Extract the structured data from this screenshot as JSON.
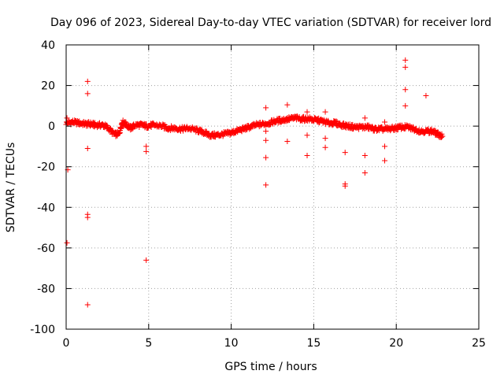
{
  "chart_data": {
    "type": "scatter",
    "title": "Day 096 of 2023, Sidereal Day-to-day VTEC variation (SDTVAR) for receiver lord",
    "xlabel": "GPS time / hours",
    "ylabel": "SDTVAR / TECUs",
    "xlim": [
      0,
      25
    ],
    "ylim": [
      -100,
      40
    ],
    "xticks": [
      0,
      5,
      10,
      15,
      20,
      25
    ],
    "yticks": [
      -100,
      -80,
      -60,
      -40,
      -20,
      0,
      20,
      40
    ],
    "grid": true,
    "marker": "+",
    "series": [
      {
        "name": "SDTVAR",
        "color": "#ff0000",
        "trend": [
          [
            0.0,
            1.5
          ],
          [
            0.4,
            2.0
          ],
          [
            0.8,
            1.5
          ],
          [
            1.2,
            1.0
          ],
          [
            1.5,
            1.0
          ],
          [
            1.8,
            0.5
          ],
          [
            2.2,
            0.5
          ],
          [
            2.5,
            -0.5
          ],
          [
            2.9,
            -4.0
          ],
          [
            3.2,
            -4.0
          ],
          [
            3.4,
            2.0
          ],
          [
            3.6,
            1.0
          ],
          [
            3.9,
            -1.0
          ],
          [
            4.2,
            0.5
          ],
          [
            4.6,
            0.5
          ],
          [
            4.9,
            0.0
          ],
          [
            5.3,
            0.5
          ],
          [
            5.8,
            0.0
          ],
          [
            6.2,
            -1.0
          ],
          [
            6.6,
            -1.0
          ],
          [
            7.0,
            -1.5
          ],
          [
            7.4,
            -1.0
          ],
          [
            7.9,
            -2.0
          ],
          [
            8.3,
            -3.0
          ],
          [
            8.7,
            -4.5
          ],
          [
            9.1,
            -4.5
          ],
          [
            9.5,
            -4.0
          ],
          [
            9.9,
            -3.5
          ],
          [
            10.3,
            -2.5
          ],
          [
            10.7,
            -1.5
          ],
          [
            11.1,
            -0.5
          ],
          [
            11.5,
            0.5
          ],
          [
            11.9,
            1.0
          ],
          [
            12.3,
            1.5
          ],
          [
            12.7,
            2.5
          ],
          [
            13.1,
            3.0
          ],
          [
            13.5,
            3.5
          ],
          [
            13.9,
            4.0
          ],
          [
            14.3,
            3.5
          ],
          [
            14.7,
            3.5
          ],
          [
            15.1,
            3.0
          ],
          [
            15.5,
            2.5
          ],
          [
            15.9,
            1.5
          ],
          [
            16.3,
            1.5
          ],
          [
            16.7,
            0.5
          ],
          [
            17.1,
            0.0
          ],
          [
            17.5,
            -0.5
          ],
          [
            17.9,
            -0.5
          ],
          [
            18.3,
            -0.5
          ],
          [
            18.7,
            -1.5
          ],
          [
            19.1,
            -1.5
          ],
          [
            19.5,
            -1.5
          ],
          [
            19.9,
            -1.0
          ],
          [
            20.3,
            -0.5
          ],
          [
            20.7,
            -0.5
          ],
          [
            21.1,
            -1.5
          ],
          [
            21.5,
            -2.5
          ],
          [
            21.9,
            -2.5
          ],
          [
            22.2,
            -2.5
          ],
          [
            22.5,
            -4.0
          ],
          [
            22.8,
            -5.0
          ]
        ],
        "outliers": [
          [
            0.05,
            4.0
          ],
          [
            0.1,
            -21.5
          ],
          [
            0.05,
            -57.5
          ],
          [
            1.3,
            22.0
          ],
          [
            1.3,
            16.0
          ],
          [
            1.3,
            -11.0
          ],
          [
            1.3,
            -43.5
          ],
          [
            1.3,
            -45.0
          ],
          [
            1.3,
            -88.0
          ],
          [
            4.85,
            -10.0
          ],
          [
            4.85,
            -12.5
          ],
          [
            4.85,
            -66.0
          ],
          [
            12.1,
            9.0
          ],
          [
            12.1,
            -2.5
          ],
          [
            12.1,
            -7.0
          ],
          [
            12.1,
            -15.5
          ],
          [
            12.1,
            -29.0
          ],
          [
            13.4,
            10.5
          ],
          [
            13.4,
            -7.5
          ],
          [
            14.6,
            7.0
          ],
          [
            14.6,
            -4.5
          ],
          [
            14.6,
            -14.5
          ],
          [
            15.7,
            7.0
          ],
          [
            15.7,
            -6.0
          ],
          [
            15.7,
            -10.5
          ],
          [
            16.9,
            -13.0
          ],
          [
            16.9,
            -28.5
          ],
          [
            16.9,
            -29.5
          ],
          [
            18.1,
            4.0
          ],
          [
            18.1,
            -14.5
          ],
          [
            18.1,
            -23.0
          ],
          [
            19.3,
            2.0
          ],
          [
            19.3,
            -10.0
          ],
          [
            19.3,
            -17.0
          ],
          [
            20.55,
            32.5
          ],
          [
            20.55,
            29.0
          ],
          [
            20.55,
            18.0
          ],
          [
            20.55,
            10.0
          ],
          [
            21.8,
            15.0
          ]
        ]
      }
    ]
  }
}
